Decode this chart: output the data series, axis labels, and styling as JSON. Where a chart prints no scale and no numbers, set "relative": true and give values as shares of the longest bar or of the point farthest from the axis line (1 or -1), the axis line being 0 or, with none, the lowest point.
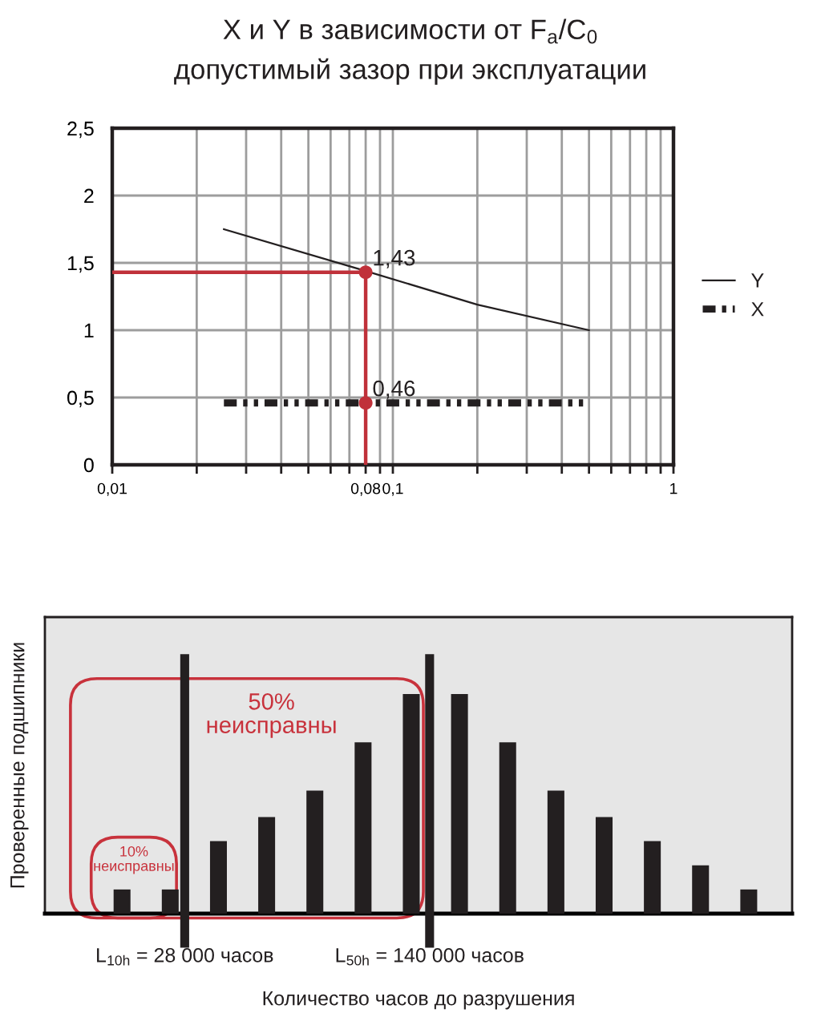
{
  "chart_data": [
    {
      "type": "line",
      "title": "X и Y в зависимости от F$_{a}$/C$_{0}$",
      "subtitle": "допустимый зазор при эксплуатации",
      "log": "x",
      "xlim": [
        0.01,
        1
      ],
      "xticks": [
        {
          "value": 0.01,
          "label": "0,01"
        },
        {
          "value": 0.02,
          "label": null
        },
        {
          "value": 0.03,
          "label": null
        },
        {
          "value": 0.04,
          "label": null
        },
        {
          "value": 0.05,
          "label": null
        },
        {
          "value": 0.06,
          "label": null
        },
        {
          "value": 0.07,
          "label": null
        },
        {
          "value": 0.08,
          "label": "0,08"
        },
        {
          "value": 0.09,
          "label": null
        },
        {
          "value": 0.1,
          "label": "0,1"
        },
        {
          "value": 0.2,
          "label": null
        },
        {
          "value": 0.3,
          "label": null
        },
        {
          "value": 0.4,
          "label": null
        },
        {
          "value": 0.5,
          "label": null
        },
        {
          "value": 0.6,
          "label": null
        },
        {
          "value": 0.7,
          "label": null
        },
        {
          "value": 0.8,
          "label": null
        },
        {
          "value": 0.9,
          "label": null
        },
        {
          "value": 1,
          "label": "1"
        }
      ],
      "ylim": [
        0,
        2.5
      ],
      "yticks": [
        0,
        {
          "value": 0.5,
          "label": "0,5"
        },
        1,
        {
          "value": 1.5,
          "label": "1,5"
        },
        2,
        {
          "value": 2.5,
          "label": "2,5"
        }
      ],
      "grid": true,
      "legend": "right",
      "series": [
        {
          "name": "Y",
          "color": "#231f20",
          "x": [
            0.025,
            0.08,
            0.2,
            0.5
          ],
          "values": [
            1.75,
            1.44,
            1.19,
            1.0
          ]
        },
        {
          "name": "X",
          "color": "#231f20",
          "line_style": "dashed",
          "x": [
            0.025,
            0.5
          ],
          "values": [
            0.46,
            0.46
          ]
        },
        {
          "color": "#c0313a",
          "x": [
            0.01,
            0.08,
            0.08
          ],
          "values": [
            1.43,
            1.43,
            0
          ]
        },
        {
          "type": "scatter",
          "marker": "circle",
          "color": "#c0313a",
          "x": [
            0.08,
            0.08
          ],
          "values": [
            1.43,
            0.46
          ]
        }
      ],
      "annotations": [
        {
          "text": "1,43",
          "x": 0.08,
          "y": 1.43
        },
        {
          "text": "0,46",
          "x": 0.08,
          "y": 0.46
        }
      ]
    },
    {
      "type": "bar",
      "relative": true,
      "xlabel": "Количество часов до разрушения",
      "ylabel": "Проверенные подшипники",
      "categories": [
        null,
        null,
        null,
        null,
        null,
        null,
        null,
        null,
        null,
        null,
        null,
        null,
        null,
        null
      ],
      "color": "#231f20",
      "values": [
        0.11,
        0.11,
        0.33,
        0.44,
        0.56,
        0.78,
        1,
        1,
        0.78,
        0.56,
        0.44,
        0.33,
        0.22,
        0.11
      ],
      "annotations": [
        "10%\nнеисправны",
        "50%\nнеисправны",
        "L$_{10h}$ = 28 000 часов",
        "L$_{50h}$ = 140 000 часов"
      ]
    }
  ]
}
